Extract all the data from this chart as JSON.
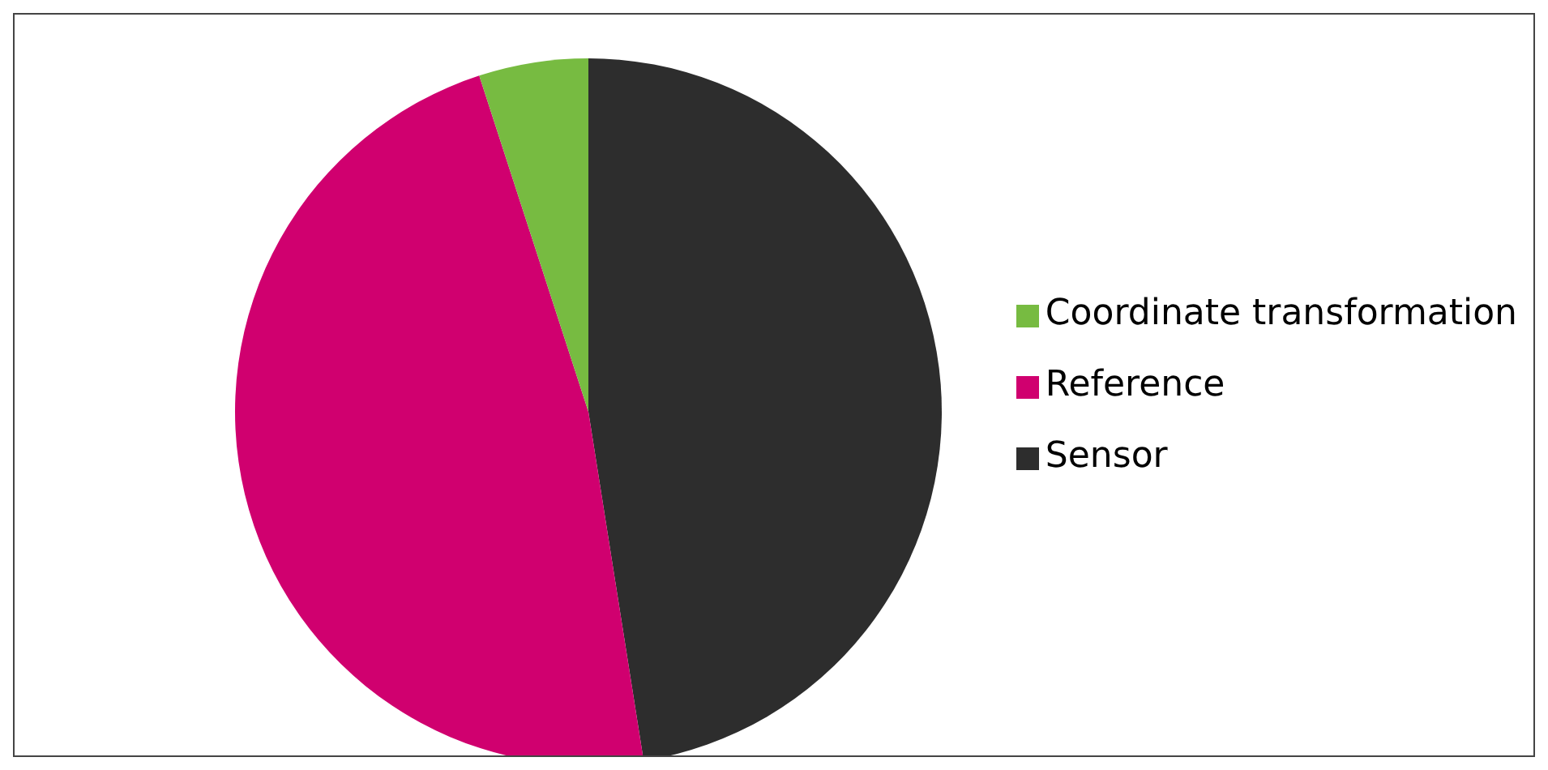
{
  "chart_data": {
    "type": "pie",
    "categories": [
      "Sensor",
      "Reference",
      "Coordinate transformation"
    ],
    "values": [
      47.5,
      47.5,
      5
    ],
    "colors": [
      "#2d2d2d",
      "#d0006f",
      "#77bb41"
    ],
    "legend": "right"
  }
}
